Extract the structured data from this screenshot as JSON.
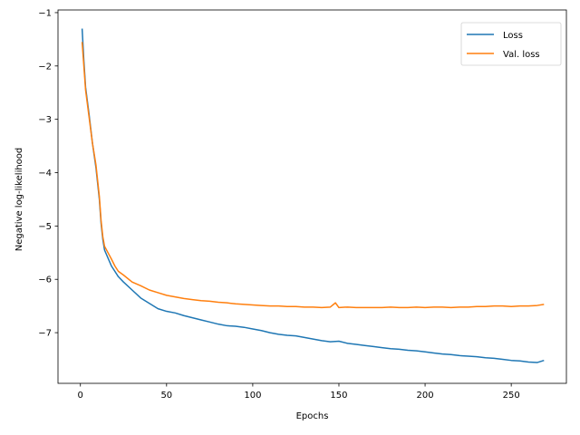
{
  "chart_data": {
    "type": "line",
    "title": "",
    "xlabel": "Epochs",
    "ylabel": "Negative log-likelihood",
    "xlim": [
      -13,
      282
    ],
    "ylim": [
      -7.95,
      -0.95
    ],
    "xticks": [
      0,
      50,
      100,
      150,
      200,
      250
    ],
    "yticks": [
      -7,
      -6,
      -5,
      -4,
      -3,
      -2,
      -1
    ],
    "ytick_labels": [
      "−7",
      "−6",
      "−5",
      "−4",
      "−3",
      "−2",
      "−1"
    ],
    "grid": false,
    "legend_position": "top-right",
    "series": [
      {
        "name": "Loss",
        "color": "#1f77b4",
        "points": [
          [
            1,
            -1.3
          ],
          [
            2,
            -1.9
          ],
          [
            3,
            -2.4
          ],
          [
            5,
            -2.9
          ],
          [
            7,
            -3.45
          ],
          [
            9,
            -3.9
          ],
          [
            11,
            -4.5
          ],
          [
            12,
            -4.95
          ],
          [
            13,
            -5.25
          ],
          [
            14,
            -5.45
          ],
          [
            16,
            -5.6
          ],
          [
            18,
            -5.75
          ],
          [
            20,
            -5.85
          ],
          [
            22,
            -5.95
          ],
          [
            25,
            -6.05
          ],
          [
            30,
            -6.2
          ],
          [
            35,
            -6.35
          ],
          [
            40,
            -6.45
          ],
          [
            45,
            -6.55
          ],
          [
            50,
            -6.6
          ],
          [
            55,
            -6.63
          ],
          [
            60,
            -6.68
          ],
          [
            65,
            -6.72
          ],
          [
            70,
            -6.76
          ],
          [
            75,
            -6.8
          ],
          [
            80,
            -6.84
          ],
          [
            85,
            -6.87
          ],
          [
            90,
            -6.88
          ],
          [
            95,
            -6.9
          ],
          [
            100,
            -6.93
          ],
          [
            105,
            -6.96
          ],
          [
            110,
            -7.0
          ],
          [
            115,
            -7.03
          ],
          [
            120,
            -7.05
          ],
          [
            125,
            -7.06
          ],
          [
            130,
            -7.09
          ],
          [
            135,
            -7.12
          ],
          [
            140,
            -7.15
          ],
          [
            145,
            -7.17
          ],
          [
            150,
            -7.16
          ],
          [
            155,
            -7.2
          ],
          [
            160,
            -7.22
          ],
          [
            165,
            -7.24
          ],
          [
            170,
            -7.26
          ],
          [
            175,
            -7.28
          ],
          [
            180,
            -7.3
          ],
          [
            185,
            -7.31
          ],
          [
            190,
            -7.33
          ],
          [
            195,
            -7.34
          ],
          [
            200,
            -7.36
          ],
          [
            205,
            -7.38
          ],
          [
            210,
            -7.4
          ],
          [
            215,
            -7.41
          ],
          [
            220,
            -7.43
          ],
          [
            225,
            -7.44
          ],
          [
            230,
            -7.45
          ],
          [
            235,
            -7.47
          ],
          [
            240,
            -7.48
          ],
          [
            245,
            -7.5
          ],
          [
            250,
            -7.52
          ],
          [
            255,
            -7.53
          ],
          [
            260,
            -7.55
          ],
          [
            265,
            -7.56
          ],
          [
            269,
            -7.52
          ]
        ]
      },
      {
        "name": "Val. loss",
        "color": "#ff7f0e",
        "points": [
          [
            1,
            -1.55
          ],
          [
            2,
            -2.0
          ],
          [
            3,
            -2.45
          ],
          [
            5,
            -2.95
          ],
          [
            7,
            -3.45
          ],
          [
            9,
            -3.85
          ],
          [
            11,
            -4.45
          ],
          [
            12,
            -4.9
          ],
          [
            13,
            -5.2
          ],
          [
            14,
            -5.38
          ],
          [
            16,
            -5.5
          ],
          [
            18,
            -5.62
          ],
          [
            20,
            -5.75
          ],
          [
            22,
            -5.85
          ],
          [
            25,
            -5.92
          ],
          [
            30,
            -6.05
          ],
          [
            35,
            -6.12
          ],
          [
            40,
            -6.2
          ],
          [
            45,
            -6.25
          ],
          [
            50,
            -6.3
          ],
          [
            55,
            -6.33
          ],
          [
            60,
            -6.36
          ],
          [
            65,
            -6.38
          ],
          [
            70,
            -6.4
          ],
          [
            75,
            -6.41
          ],
          [
            80,
            -6.43
          ],
          [
            85,
            -6.44
          ],
          [
            90,
            -6.46
          ],
          [
            95,
            -6.47
          ],
          [
            100,
            -6.48
          ],
          [
            105,
            -6.49
          ],
          [
            110,
            -6.5
          ],
          [
            115,
            -6.5
          ],
          [
            120,
            -6.51
          ],
          [
            125,
            -6.51
          ],
          [
            130,
            -6.52
          ],
          [
            135,
            -6.52
          ],
          [
            140,
            -6.53
          ],
          [
            145,
            -6.52
          ],
          [
            148,
            -6.44
          ],
          [
            150,
            -6.53
          ],
          [
            155,
            -6.52
          ],
          [
            160,
            -6.53
          ],
          [
            165,
            -6.53
          ],
          [
            170,
            -6.53
          ],
          [
            175,
            -6.53
          ],
          [
            180,
            -6.52
          ],
          [
            185,
            -6.53
          ],
          [
            190,
            -6.53
          ],
          [
            195,
            -6.52
          ],
          [
            200,
            -6.53
          ],
          [
            205,
            -6.52
          ],
          [
            210,
            -6.52
          ],
          [
            215,
            -6.53
          ],
          [
            220,
            -6.52
          ],
          [
            225,
            -6.52
          ],
          [
            230,
            -6.51
          ],
          [
            235,
            -6.51
          ],
          [
            240,
            -6.5
          ],
          [
            245,
            -6.5
          ],
          [
            250,
            -6.51
          ],
          [
            255,
            -6.5
          ],
          [
            260,
            -6.5
          ],
          [
            265,
            -6.49
          ],
          [
            269,
            -6.47
          ]
        ]
      }
    ]
  }
}
